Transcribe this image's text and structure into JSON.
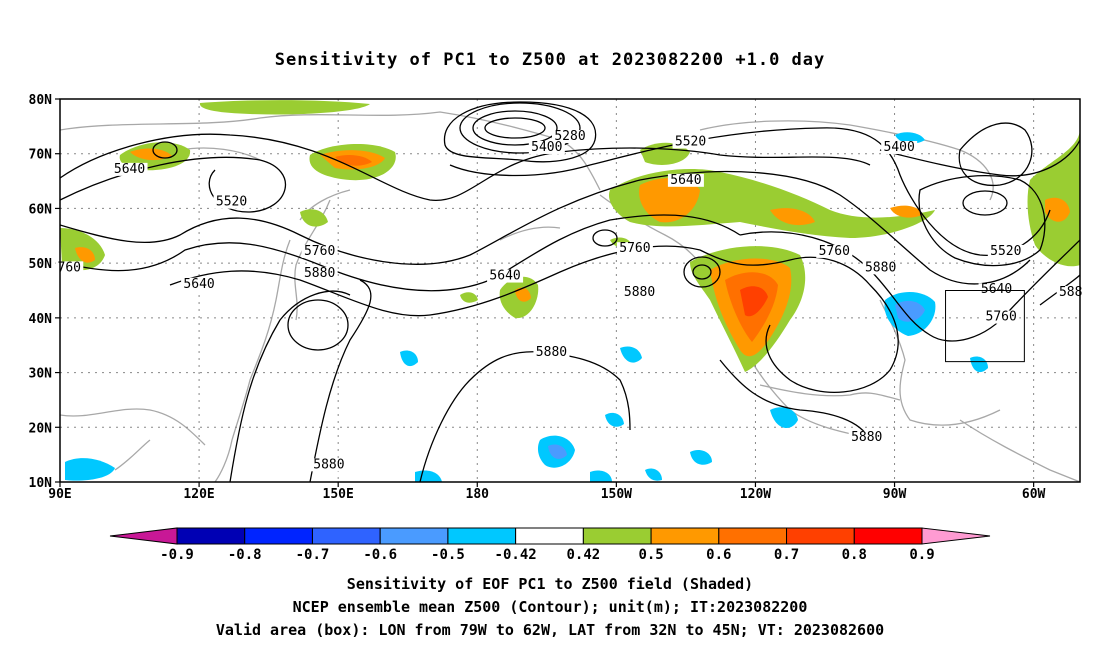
{
  "title": "Sensitivity of PC1 to Z500 at 2023082200 +1.0 day",
  "map": {
    "lon_range": [
      90,
      310
    ],
    "lat_range": [
      10,
      80
    ],
    "lat_ticks": [
      {
        "lat": 80,
        "label": "80N"
      },
      {
        "lat": 70,
        "label": "70N"
      },
      {
        "lat": 60,
        "label": "60N"
      },
      {
        "lat": 50,
        "label": "50N"
      },
      {
        "lat": 40,
        "label": "40N"
      },
      {
        "lat": 30,
        "label": "30N"
      },
      {
        "lat": 20,
        "label": "20N"
      },
      {
        "lat": 10,
        "label": "10N"
      }
    ],
    "lon_ticks": [
      {
        "lon": 90,
        "label": "90E"
      },
      {
        "lon": 120,
        "label": "120E"
      },
      {
        "lon": 150,
        "label": "150E"
      },
      {
        "lon": 180,
        "label": "180"
      },
      {
        "lon": 210,
        "label": "150W"
      },
      {
        "lon": 240,
        "label": "120W"
      },
      {
        "lon": 270,
        "label": "90W"
      },
      {
        "lon": 300,
        "label": "60W"
      }
    ],
    "valid_box": {
      "lon_min": 281,
      "lon_max": 298,
      "lat_min": 32,
      "lat_max": 45
    },
    "contour_labels": [
      {
        "text": "5280",
        "lon": 200,
        "lat": 72.5
      },
      {
        "text": "5400",
        "lon": 195,
        "lat": 70.5
      },
      {
        "text": "5520",
        "lon": 226,
        "lat": 71.5
      },
      {
        "text": "5400",
        "lon": 271,
        "lat": 70.5
      },
      {
        "text": "5640",
        "lon": 105,
        "lat": 66.5
      },
      {
        "text": "5520",
        "lon": 127,
        "lat": 60.5
      },
      {
        "text": "5640",
        "lon": 225,
        "lat": 64.5
      },
      {
        "text": "5760",
        "lon": 146,
        "lat": 51.5
      },
      {
        "text": "5880",
        "lon": 146,
        "lat": 47.5
      },
      {
        "text": "5640",
        "lon": 120,
        "lat": 45.5
      },
      {
        "text": "5640",
        "lon": 186,
        "lat": 47
      },
      {
        "text": "5760",
        "lon": 214,
        "lat": 52
      },
      {
        "text": "5880",
        "lon": 215,
        "lat": 44
      },
      {
        "text": "5760",
        "lon": 257,
        "lat": 51.5
      },
      {
        "text": "5880",
        "lon": 267,
        "lat": 48.5
      },
      {
        "text": "5520",
        "lon": 294,
        "lat": 51.5
      },
      {
        "text": "5640",
        "lon": 292,
        "lat": 44.5
      },
      {
        "text": "5760",
        "lon": 293,
        "lat": 39.5
      },
      {
        "text": "588",
        "lon": 308,
        "lat": 44
      },
      {
        "text": "760",
        "lon": 92,
        "lat": 48.5
      },
      {
        "text": "5880",
        "lon": 196,
        "lat": 33
      },
      {
        "text": "5880",
        "lon": 264,
        "lat": 17.5
      },
      {
        "text": "5880",
        "lon": 148,
        "lat": 12.5
      }
    ]
  },
  "colorbar": {
    "labels": [
      "-0.9",
      "-0.8",
      "-0.7",
      "-0.6",
      "-0.5",
      "-0.42",
      "0.42",
      "0.5",
      "0.6",
      "0.7",
      "0.8",
      "0.9"
    ],
    "colors": [
      "#0000b4",
      "#0024ff",
      "#2f63ff",
      "#4a9bff",
      "#00c8ff",
      "#ffffff",
      "#9acd32",
      "#ff9900",
      "#ff7000",
      "#ff4000",
      "#ff0000"
    ],
    "low_color": "#c81896",
    "high_color": "#ff9bd2"
  },
  "footer": {
    "line1": "Sensitivity of EOF PC1 to Z500 field (Shaded)",
    "line2": "NCEP ensemble mean Z500 (Contour); unit(m); IT:2023082200",
    "line3": "Valid area (box): LON from 79W to 62W, LAT from 32N to 45N; VT: 2023082600"
  }
}
